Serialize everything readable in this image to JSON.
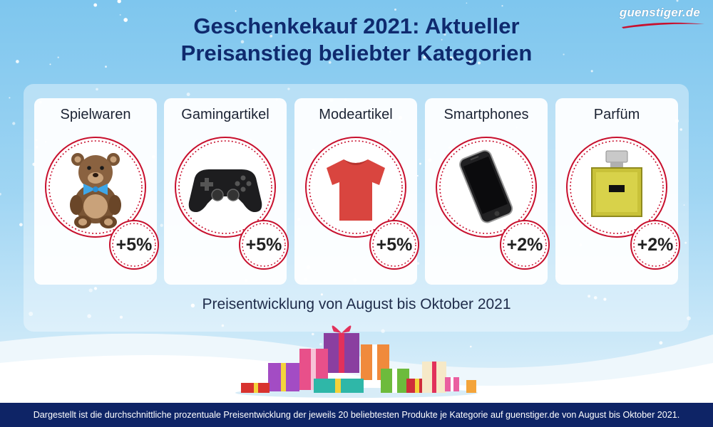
{
  "brand": "guenstiger.de",
  "header": {
    "title_line1": "Geschenkekauf 2021: Aktueller",
    "title_line2": "Preisanstieg beliebter Kategorien"
  },
  "chart_data": {
    "type": "table",
    "categories": [
      "Spielwaren",
      "Gamingartikel",
      "Modeartikel",
      "Smartphones",
      "Parfüm"
    ],
    "values": [
      5,
      5,
      5,
      2,
      2
    ],
    "value_labels": [
      "+5%",
      "+5%",
      "+5%",
      "+2%",
      "+2%"
    ],
    "icons": [
      "teddy-bear-icon",
      "gamepad-icon",
      "tshirt-icon",
      "smartphone-icon",
      "perfume-icon"
    ],
    "subtitle": "Preisentwicklung von August bis Oktober 2021"
  },
  "footer": {
    "note": "Dargestellt ist die durchschnittliche prozentuale Preisentwicklung der jeweils 20 beliebtesten Produkte je Kategorie auf guenstiger.de von August bis Oktober 2021."
  },
  "colors": {
    "title": "#0f2a6e",
    "accent_red": "#c8102e",
    "footer_bg": "#0e2466"
  }
}
